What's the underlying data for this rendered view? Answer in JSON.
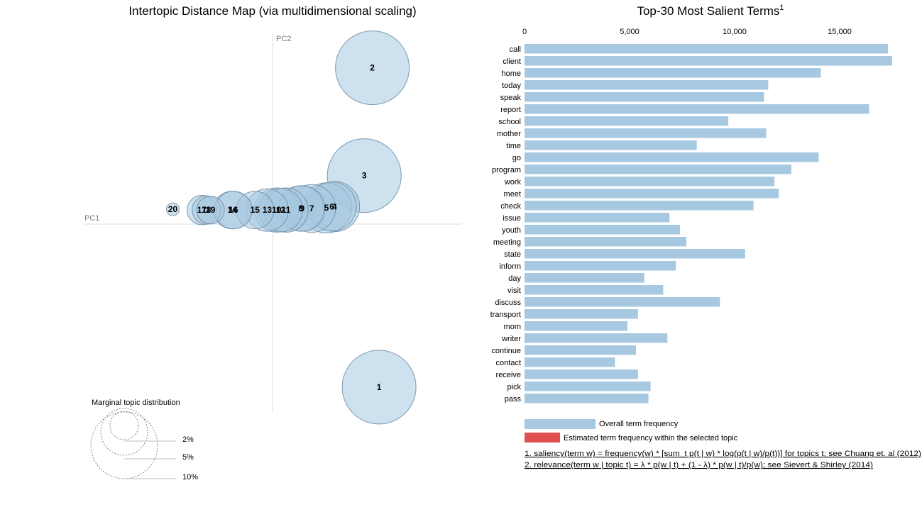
{
  "left_title": "Intertopic Distance Map (via multidimensional scaling)",
  "right_title": "Top-30 Most Salient Terms",
  "right_title_sup": "1",
  "pc1_label": "PC1",
  "pc2_label": "PC2",
  "marginal_label": "Marginal topic distribution",
  "marginal_sizes": [
    "2%",
    "5%",
    "10%"
  ],
  "legend": {
    "overall": "Overall term frequency",
    "estimated": "Estimated term frequency within the selected topic"
  },
  "notes": [
    "1. saliency(term w) = frequency(w) * [sum_t p(t | w) * log(p(t | w)/p(t))] for topics t; see Chuang et. al (2012)",
    "2. relevance(term w | topic t) = λ * p(w | t) + (1 - λ) * p(w | t)/p(w); see Sievert & Shirley (2014)"
  ],
  "colors": {
    "bar": "#a6c8e0",
    "selected": "#e05050",
    "bubble": "#a6c8e0"
  },
  "chart_data": [
    {
      "type": "scatter",
      "title": "Intertopic Distance Map (via multidimensional scaling)",
      "xlabel": "PC1",
      "ylabel": "PC2",
      "topics": [
        {
          "id": "1",
          "x": 0.395,
          "y": -0.605,
          "size": 10.0
        },
        {
          "id": "2",
          "x": 0.37,
          "y": 0.58,
          "size": 10.0
        },
        {
          "id": "3",
          "x": 0.34,
          "y": 0.18,
          "size": 10.0
        },
        {
          "id": "4",
          "x": 0.23,
          "y": 0.065,
          "size": 4.6
        },
        {
          "id": "5",
          "x": 0.2,
          "y": 0.06,
          "size": 4.6
        },
        {
          "id": "6",
          "x": 0.22,
          "y": 0.065,
          "size": 4.4
        },
        {
          "id": "7",
          "x": 0.145,
          "y": 0.058,
          "size": 4.2
        },
        {
          "id": "8",
          "x": 0.105,
          "y": 0.058,
          "size": 3.8
        },
        {
          "id": "9",
          "x": 0.11,
          "y": 0.058,
          "size": 3.8
        },
        {
          "id": "10",
          "x": 0.015,
          "y": 0.052,
          "size": 3.6
        },
        {
          "id": "11",
          "x": 0.05,
          "y": 0.052,
          "size": 3.6
        },
        {
          "id": "12",
          "x": 0.03,
          "y": 0.052,
          "size": 3.5
        },
        {
          "id": "13",
          "x": -0.02,
          "y": 0.052,
          "size": 3.3
        },
        {
          "id": "14",
          "x": -0.15,
          "y": 0.052,
          "size": 2.6
        },
        {
          "id": "15",
          "x": -0.065,
          "y": 0.052,
          "size": 2.6
        },
        {
          "id": "16",
          "x": -0.145,
          "y": 0.052,
          "size": 2.6
        },
        {
          "id": "17",
          "x": -0.262,
          "y": 0.052,
          "size": 1.6
        },
        {
          "id": "18",
          "x": -0.245,
          "y": 0.052,
          "size": 1.5
        },
        {
          "id": "19",
          "x": -0.23,
          "y": 0.052,
          "size": 1.4
        },
        {
          "id": "20",
          "x": -0.37,
          "y": 0.055,
          "size": 0.3
        }
      ]
    },
    {
      "type": "bar",
      "orientation": "horizontal",
      "title": "Top-30 Most Salient Terms",
      "xlim": [
        0,
        18500
      ],
      "xticks": [
        0,
        5000,
        10000,
        15000
      ],
      "xtick_labels": [
        "0",
        "5,000",
        "10,000",
        "15,000"
      ],
      "series": [
        {
          "name": "Overall term frequency",
          "values": [
            17300,
            17500,
            14100,
            11600,
            11400,
            16400,
            9700,
            11500,
            8200,
            14000,
            12700,
            11900,
            12100,
            10900,
            6900,
            7400,
            7700,
            10500,
            7200,
            5700,
            6600,
            9300,
            5400,
            4900,
            6800,
            5300,
            4300,
            5400,
            6000,
            5900
          ]
        }
      ],
      "categories": [
        "call",
        "client",
        "home",
        "today",
        "speak",
        "report",
        "school",
        "mother",
        "time",
        "go",
        "program",
        "work",
        "meet",
        "check",
        "issue",
        "youth",
        "meeting",
        "state",
        "inform",
        "day",
        "visit",
        "discuss",
        "transport",
        "mom",
        "writer",
        "continue",
        "contact",
        "receive",
        "pick",
        "pass"
      ]
    }
  ]
}
